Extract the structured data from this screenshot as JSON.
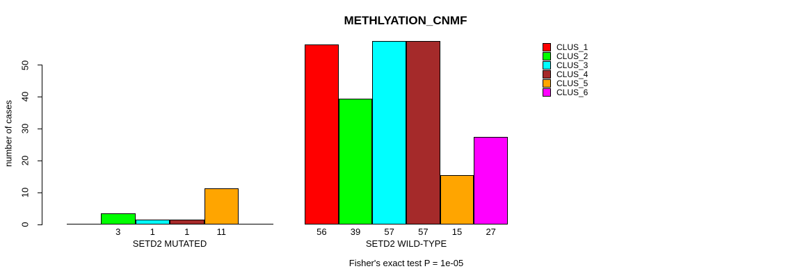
{
  "title": "METHLYATION_CNMF",
  "chart_data": {
    "type": "bar",
    "title": "METHLYATION_CNMF",
    "xlabel": "",
    "ylabel": "number of cases",
    "yticks": [
      0,
      10,
      20,
      30,
      40,
      50
    ],
    "ylim": [
      0,
      57
    ],
    "grid": false,
    "legend_position": "right",
    "categories": [
      "CLUS_1",
      "CLUS_2",
      "CLUS_3",
      "CLUS_4",
      "CLUS_5",
      "CLUS_6"
    ],
    "legend": [
      {
        "name": "CLUS_1",
        "color": "#FF0000"
      },
      {
        "name": "CLUS_2",
        "color": "#00FF00"
      },
      {
        "name": "CLUS_3",
        "color": "#00FFFF"
      },
      {
        "name": "CLUS_4",
        "color": "#A52A2A"
      },
      {
        "name": "CLUS_5",
        "color": "#FFA500"
      },
      {
        "name": "CLUS_6",
        "color": "#FF00FF"
      }
    ],
    "groups": [
      {
        "label": "SETD2 MUTATED",
        "values": [
          0,
          3,
          1,
          1,
          11,
          0
        ],
        "bar_labels": [
          "",
          "3",
          "1",
          "1",
          "11",
          ""
        ]
      },
      {
        "label": "SETD2 WILD-TYPE",
        "values": [
          56,
          39,
          57,
          57,
          15,
          27
        ],
        "bar_labels": [
          "56",
          "39",
          "57",
          "57",
          "15",
          "27"
        ]
      }
    ],
    "annotation": "Fisher's exact test P = 1e-05"
  }
}
